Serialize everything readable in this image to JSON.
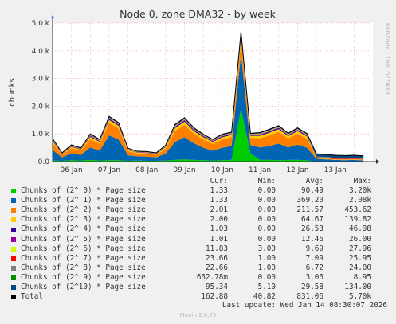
{
  "chart_data": {
    "type": "area",
    "stacked": true,
    "title": "Node 0, zone DMA32 - by week",
    "ylabel": "chunks",
    "side_label": "RRDTOOL / TOBI OETIKER",
    "ylim": [
      0,
      5000
    ],
    "y_ticks": [
      {
        "value": 0,
        "label": "0.0"
      },
      {
        "value": 1000,
        "label": "1.0 k"
      },
      {
        "value": 2000,
        "label": "2.0 k"
      },
      {
        "value": 3000,
        "label": "3.0 k"
      },
      {
        "value": 4000,
        "label": "4.0 k"
      },
      {
        "value": 5000,
        "label": "5.0 k"
      }
    ],
    "x_ticks": [
      "06 Jan",
      "07 Jan",
      "08 Jan",
      "09 Jan",
      "10 Jan",
      "11 Jan",
      "12 Jan",
      "13 Jan"
    ],
    "x_tick_positions_days": [
      0.5,
      1.5,
      2.5,
      3.5,
      4.5,
      5.5,
      6.5,
      7.5
    ],
    "x_range_days": [
      0,
      8.5
    ],
    "grid": true,
    "x_samples": [
      0.0,
      0.25,
      0.5,
      0.75,
      1.0,
      1.25,
      1.5,
      1.75,
      2.0,
      2.25,
      2.5,
      2.75,
      3.0,
      3.25,
      3.5,
      3.75,
      4.0,
      4.25,
      4.5,
      4.75,
      5.0,
      5.25,
      5.5,
      5.75,
      6.0,
      6.25,
      6.5,
      6.75,
      7.0,
      7.25,
      7.5,
      7.75,
      8.0,
      8.25
    ],
    "series": [
      {
        "name": "Chunks of (2^ 0) * Page size",
        "color": "#00cc00",
        "values": [
          40,
          30,
          50,
          40,
          60,
          40,
          50,
          50,
          30,
          40,
          30,
          30,
          40,
          60,
          80,
          60,
          50,
          40,
          50,
          60,
          1900,
          300,
          60,
          60,
          50,
          60,
          60,
          50,
          0,
          0,
          0,
          0,
          0,
          0
        ]
      },
      {
        "name": "Chunks of (2^ 1) * Page size",
        "color": "#0066b3",
        "values": [
          380,
          120,
          250,
          200,
          450,
          350,
          900,
          750,
          200,
          150,
          150,
          120,
          250,
          650,
          800,
          600,
          450,
          350,
          450,
          500,
          2000,
          300,
          450,
          500,
          600,
          450,
          550,
          450,
          100,
          80,
          60,
          50,
          60,
          40
        ]
      },
      {
        "name": "Chunks of (2^ 2) * Page size",
        "color": "#ff8000",
        "values": [
          250,
          90,
          180,
          150,
          300,
          250,
          450,
          400,
          150,
          100,
          100,
          90,
          180,
          400,
          450,
          350,
          300,
          250,
          300,
          320,
          420,
          260,
          330,
          380,
          420,
          330,
          400,
          330,
          20,
          20,
          10,
          10,
          10,
          10
        ]
      },
      {
        "name": "Chunks of (2^ 3) * Page size",
        "color": "#ffcc00",
        "values": [
          70,
          30,
          50,
          40,
          80,
          70,
          100,
          90,
          40,
          30,
          30,
          30,
          50,
          100,
          110,
          90,
          80,
          70,
          80,
          80,
          120,
          70,
          90,
          100,
          100,
          80,
          90,
          80,
          3,
          3,
          3,
          3,
          3,
          3
        ]
      },
      {
        "name": "Chunks of (2^ 4) * Page size",
        "color": "#330099",
        "values": [
          28,
          10,
          20,
          15,
          32,
          28,
          40,
          36,
          15,
          12,
          12,
          10,
          20,
          40,
          44,
          36,
          32,
          28,
          32,
          32,
          46,
          28,
          36,
          40,
          40,
          32,
          36,
          32,
          1,
          1,
          1,
          1,
          1,
          1
        ]
      },
      {
        "name": "Chunks of (2^ 5) * Page size",
        "color": "#990099",
        "values": [
          12,
          6,
          10,
          8,
          14,
          12,
          18,
          16,
          8,
          6,
          6,
          6,
          10,
          18,
          20,
          16,
          14,
          12,
          14,
          14,
          24,
          12,
          16,
          18,
          18,
          14,
          16,
          14,
          1,
          1,
          1,
          1,
          1,
          1
        ]
      },
      {
        "name": "Chunks of (2^ 6) * Page size",
        "color": "#ccff00",
        "values": [
          10,
          6,
          9,
          8,
          12,
          11,
          14,
          13,
          8,
          7,
          7,
          6,
          9,
          14,
          15,
          13,
          12,
          11,
          12,
          12,
          20,
          11,
          13,
          14,
          14,
          12,
          13,
          12,
          12,
          12,
          12,
          12,
          12,
          12
        ]
      },
      {
        "name": "Chunks of (2^ 7) * Page size",
        "color": "#ff0000",
        "values": [
          7,
          5,
          6,
          6,
          8,
          7,
          9,
          8,
          6,
          5,
          5,
          5,
          6,
          9,
          10,
          9,
          8,
          7,
          8,
          8,
          20,
          7,
          9,
          9,
          9,
          8,
          9,
          8,
          24,
          24,
          24,
          24,
          24,
          24
        ]
      },
      {
        "name": "Chunks of (2^ 8) * Page size",
        "color": "#808080",
        "values": [
          6,
          4,
          6,
          5,
          7,
          6,
          8,
          8,
          5,
          5,
          5,
          4,
          6,
          8,
          9,
          8,
          7,
          6,
          7,
          7,
          18,
          6,
          8,
          8,
          8,
          7,
          8,
          7,
          23,
          23,
          23,
          23,
          23,
          23
        ]
      },
      {
        "name": "Chunks of (2^ 9) * Page size",
        "color": "#008f00",
        "values": [
          3,
          2,
          3,
          3,
          4,
          3,
          4,
          4,
          3,
          3,
          3,
          2,
          3,
          4,
          4,
          4,
          4,
          3,
          4,
          4,
          8,
          3,
          4,
          4,
          4,
          4,
          4,
          4,
          1,
          1,
          1,
          1,
          1,
          1
        ]
      },
      {
        "name": "Chunks of (2^10) * Page size",
        "color": "#00487d",
        "values": [
          28,
          12,
          20,
          16,
          30,
          26,
          38,
          34,
          16,
          14,
          14,
          12,
          20,
          38,
          40,
          34,
          30,
          26,
          30,
          30,
          120,
          28,
          34,
          36,
          36,
          30,
          34,
          30,
          95,
          95,
          95,
          95,
          95,
          95
        ]
      },
      {
        "name": "Total",
        "color": "#000000",
        "line": true,
        "values": [
          834,
          315,
          604,
          491,
          997,
          803,
          1631,
          1409,
          481,
          372,
          362,
          315,
          594,
          1341,
          1582,
          1220,
          987,
          803,
          987,
          1067,
          4696,
          1025,
          1050,
          1169,
          1299,
          1027,
          1220,
          1017,
          280,
          260,
          230,
          220,
          230,
          210
        ]
      }
    ],
    "legend": {
      "headers": [
        "Cur:",
        "Min:",
        "Avg:",
        "Max:"
      ],
      "rows": [
        {
          "name": "Chunks of (2^ 0) * Page size",
          "color": "#00cc00",
          "cur": "1.33",
          "min": "0.00",
          "avg": "90.49",
          "max": "3.20k"
        },
        {
          "name": "Chunks of (2^ 1) * Page size",
          "color": "#0066b3",
          "cur": "1.33",
          "min": "0.00",
          "avg": "369.20",
          "max": "2.08k"
        },
        {
          "name": "Chunks of (2^ 2) * Page size",
          "color": "#ff8000",
          "cur": "2.01",
          "min": "0.00",
          "avg": "211.57",
          "max": "453.62"
        },
        {
          "name": "Chunks of (2^ 3) * Page size",
          "color": "#ffcc00",
          "cur": "2.00",
          "min": "0.00",
          "avg": "64.67",
          "max": "139.82"
        },
        {
          "name": "Chunks of (2^ 4) * Page size",
          "color": "#330099",
          "cur": "1.03",
          "min": "0.00",
          "avg": "26.53",
          "max": "46.98"
        },
        {
          "name": "Chunks of (2^ 5) * Page size",
          "color": "#990099",
          "cur": "1.01",
          "min": "0.00",
          "avg": "12.46",
          "max": "26.00"
        },
        {
          "name": "Chunks of (2^ 6) * Page size",
          "color": "#ccff00",
          "cur": "11.83",
          "min": "3.00",
          "avg": "9.69",
          "max": "27.96"
        },
        {
          "name": "Chunks of (2^ 7) * Page size",
          "color": "#ff0000",
          "cur": "23.66",
          "min": "1.00",
          "avg": "7.09",
          "max": "25.95"
        },
        {
          "name": "Chunks of (2^ 8) * Page size",
          "color": "#808080",
          "cur": "22.66",
          "min": "1.00",
          "avg": "6.72",
          "max": "24.00"
        },
        {
          "name": "Chunks of (2^ 9) * Page size",
          "color": "#008f00",
          "cur": "662.78m",
          "min": "0.00",
          "avg": "3.06",
          "max": "8.95"
        },
        {
          "name": "Chunks of (2^10) * Page size",
          "color": "#00487d",
          "cur": "95.34",
          "min": "5.10",
          "avg": "29.58",
          "max": "134.00"
        },
        {
          "name": "Total",
          "color": "#000000",
          "cur": "162.88",
          "min": "40.82",
          "avg": "831.06",
          "max": "5.70k"
        }
      ]
    }
  },
  "footer": {
    "last_update": "Last update: Wed Jan 14 08:30:07 2026",
    "munin_version": "Munin 2.0.73"
  }
}
